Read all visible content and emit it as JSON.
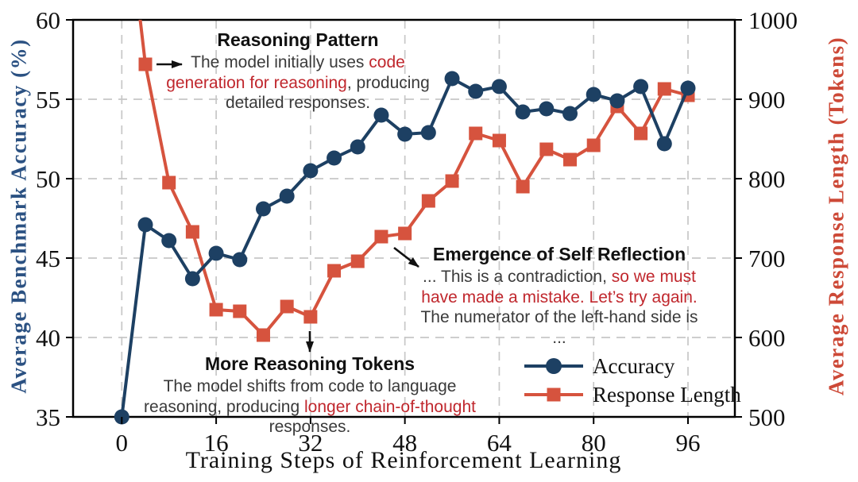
{
  "figure": {
    "xlabel": "Training Steps of Reinforcement Learning",
    "left_axis_title": "Average Benchmark Accuracy (%)",
    "right_axis_title": "Average Response Length (Tokens)"
  },
  "chart_data": {
    "type": "line",
    "x": [
      0,
      4,
      8,
      12,
      16,
      20,
      24,
      28,
      32,
      36,
      40,
      44,
      48,
      52,
      56,
      60,
      64,
      68,
      72,
      76,
      80,
      84,
      88,
      92,
      96
    ],
    "series": [
      {
        "name": "Accuracy",
        "axis": "left",
        "color": "#1d4063",
        "marker": "circle",
        "values": [
          35.0,
          47.1,
          46.1,
          43.7,
          45.3,
          44.9,
          48.1,
          48.9,
          50.5,
          51.3,
          52.0,
          54.0,
          52.8,
          52.9,
          56.3,
          55.5,
          55.8,
          54.2,
          54.4,
          54.1,
          55.3,
          54.9,
          55.8,
          52.2,
          55.7
        ]
      },
      {
        "name": "Response Length",
        "axis": "right",
        "color": "#d6533e",
        "marker": "square",
        "values": [
          1200,
          944,
          795,
          733,
          635,
          633,
          603,
          639,
          626,
          684,
          696,
          727,
          731,
          772,
          797,
          857,
          848,
          790,
          837,
          824,
          842,
          891,
          857,
          913,
          905
        ]
      }
    ],
    "xlabel": "Training Steps of Reinforcement Learning",
    "x_ticks": [
      0,
      16,
      32,
      48,
      64,
      80,
      96
    ],
    "left_axis": {
      "label": "Average Benchmark Accuracy (%)",
      "range": [
        35,
        60
      ],
      "ticks": [
        35,
        40,
        45,
        50,
        55,
        60
      ],
      "color": "#2b5182"
    },
    "right_axis": {
      "label": "Average Response Length (Tokens)",
      "range": [
        500,
        1000
      ],
      "ticks": [
        500,
        600,
        700,
        800,
        900,
        1000
      ],
      "color": "#cd4937"
    },
    "grid": true,
    "legend_position": "lower right",
    "note": "Response Length at step 0 rises above the top of the plot (clipped at 1000)."
  },
  "annotations": {
    "reasoning_pattern": {
      "title": "Reasoning Pattern",
      "text_before": "The model initially uses ",
      "text_red": "code generation for reasoning",
      "text_after": ", producing detailed responses."
    },
    "more_tokens": {
      "title": "More Reasoning Tokens",
      "text_before": "The model shifts from code to language reasoning, producing ",
      "text_red": "longer chain-of-thought",
      "text_after": " responses."
    },
    "self_reflection": {
      "title": "Emergence of Self Reflection",
      "text_before": "... This is a contradiction, ",
      "text_red": "so we must have made a mistake. Let’s try again.",
      "text_after": " The numerator of the left-hand side is ..."
    }
  },
  "legend": {
    "items": [
      "Accuracy",
      "Response Length"
    ]
  }
}
